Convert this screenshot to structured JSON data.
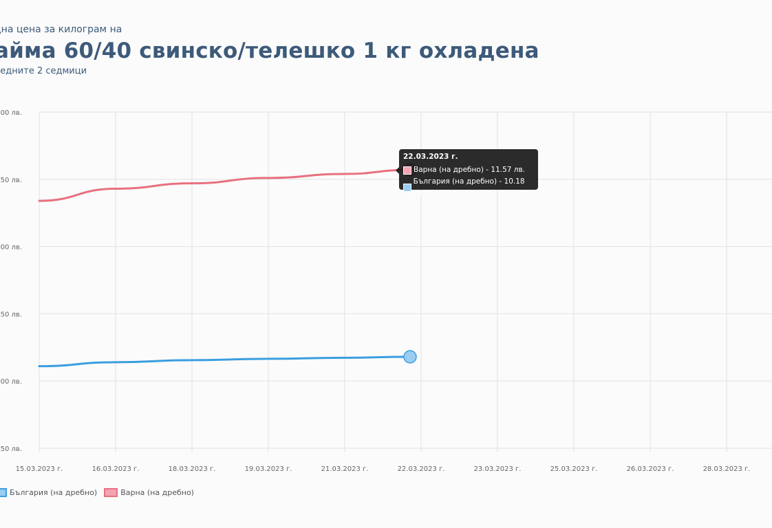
{
  "header": {
    "pretitle": "дна цена за килограм на",
    "title": "айма 60/40 свинско/телешко 1 кг охладена",
    "subtitle": "ледните 2 седмици"
  },
  "tooltip": {
    "date": "22.03.2023 г.",
    "rows": [
      {
        "text": "Варна (на дребно) - 11.57 лв.",
        "color": "#f2a4b4"
      },
      {
        "text": "България (на дребно) - 10.18 лв.",
        "color": "#9ccdf0"
      }
    ]
  },
  "legend": [
    {
      "label": "България (на дребно)",
      "color": "#3a9ee0",
      "fill": "#9ccdf0"
    },
    {
      "label": "Варна (на дребно)",
      "color": "#e8707f",
      "fill": "#f2a4b4"
    }
  ],
  "chart_data": {
    "type": "line",
    "x_ticks": [
      "15.03.2023 г.",
      "16.03.2023 г.",
      "18.03.2023 г.",
      "19.03.2023 г.",
      "21.03.2023 г.",
      "22.03.2023 г.",
      "23.03.2023 г.",
      "25.03.2023 г.",
      "26.03.2023 г.",
      "28.03.2023 г."
    ],
    "y_tick_labels": [
      "00 лв.",
      "50 лв.",
      "00 лв.",
      "50 лв.",
      "00 лв.",
      "50 лв."
    ],
    "y_ticks": [
      12.0,
      11.5,
      11.0,
      10.5,
      10.0,
      9.5
    ],
    "ylim": [
      9.5,
      12.0
    ],
    "series": [
      {
        "name": "Варна (на дребно)",
        "color": "#e8707f",
        "x": [
          "15.03.2023 г.",
          "16.03.2023 г.",
          "18.03.2023 г.",
          "19.03.2023 г.",
          "21.03.2023 г.",
          "22.03.2023 г."
        ],
        "values": [
          11.34,
          11.43,
          11.47,
          11.51,
          11.54,
          11.57
        ]
      },
      {
        "name": "България (на дребно)",
        "color": "#3a9ee0",
        "x": [
          "15.03.2023 г.",
          "16.03.2023 г.",
          "18.03.2023 г.",
          "19.03.2023 г.",
          "21.03.2023 г.",
          "22.03.2023 г."
        ],
        "values": [
          10.11,
          10.14,
          10.155,
          10.165,
          10.173,
          10.18
        ]
      }
    ]
  }
}
